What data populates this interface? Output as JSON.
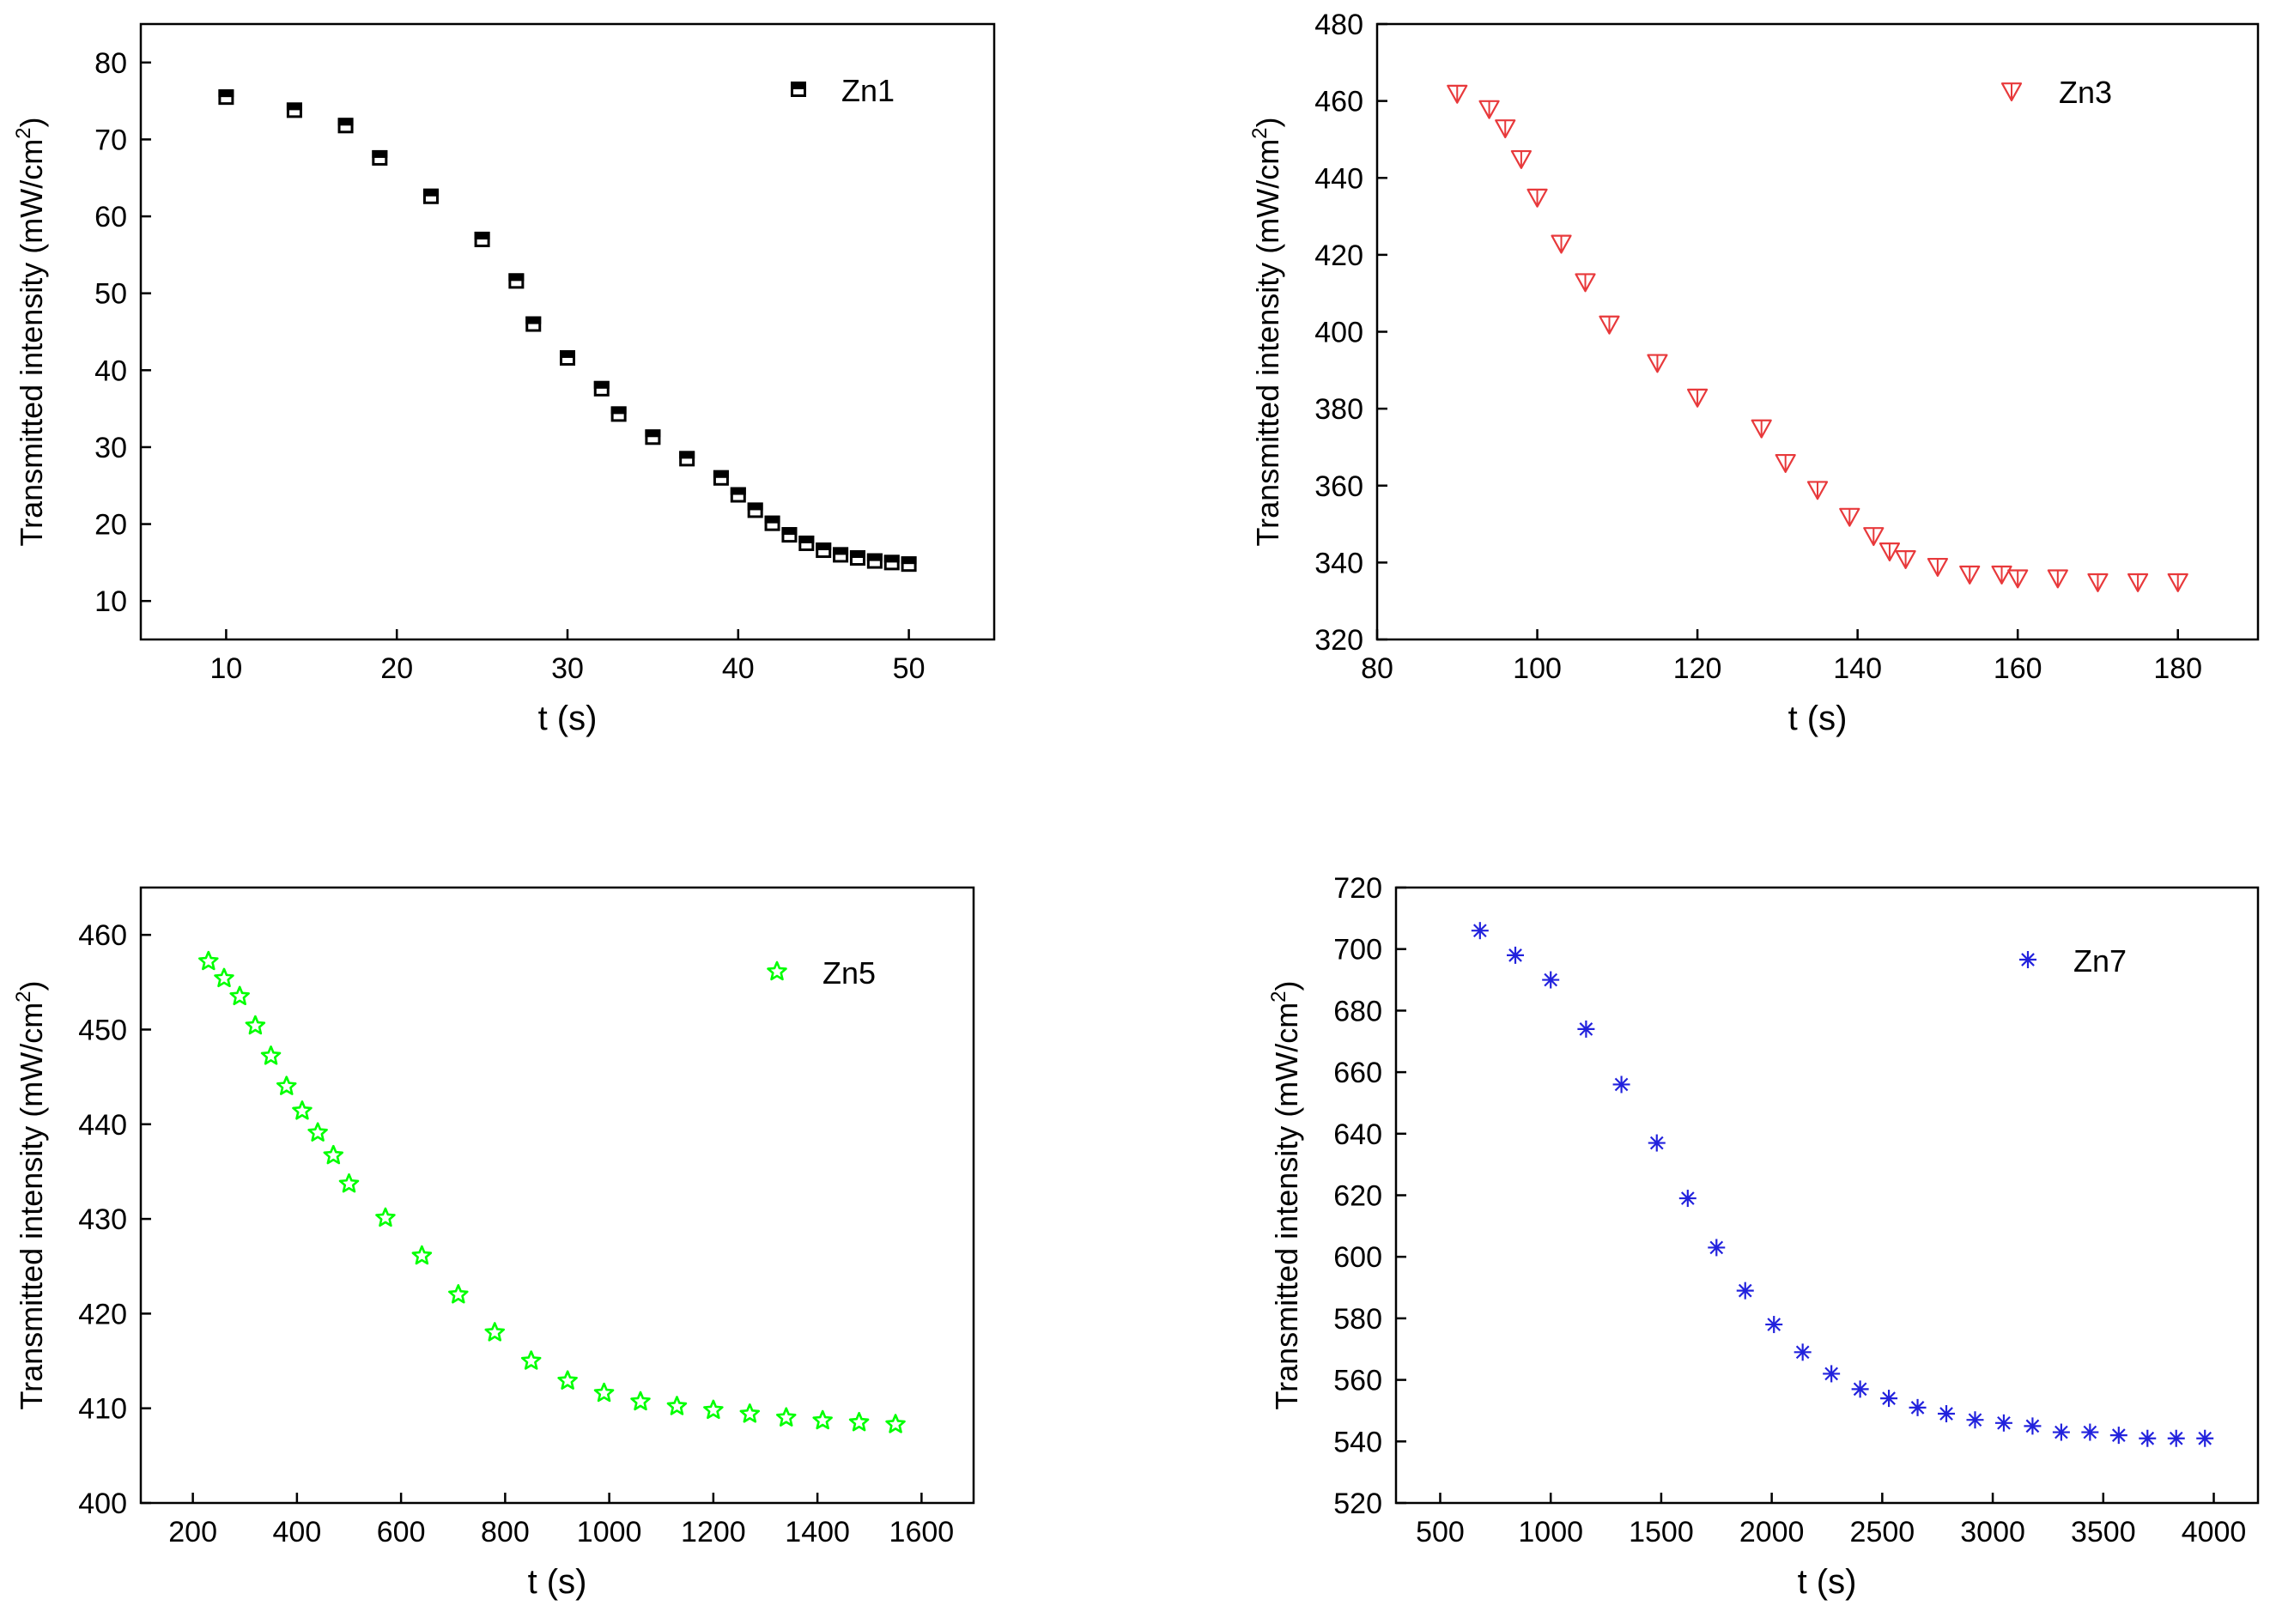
{
  "chart_data": [
    {
      "type": "scatter",
      "title": "",
      "xlabel": "t (s)",
      "ylabel": {
        "main": "Transmitted intensity (mW/cm",
        "sup": "2",
        "close": ")"
      },
      "xlim": [
        5,
        55
      ],
      "ylim": [
        5,
        85
      ],
      "xticks": [
        10,
        20,
        30,
        40,
        50
      ],
      "yticks": [
        10,
        20,
        30,
        40,
        50,
        60,
        70,
        80
      ],
      "legend": {
        "label": "Zn1",
        "position": "top-right"
      },
      "marker": "half-filled-square",
      "color": "#000000",
      "series": [
        {
          "name": "Zn1",
          "x": [
            10,
            14,
            17,
            19,
            22,
            25,
            27,
            28,
            30,
            32,
            33,
            35,
            37,
            39,
            40,
            41,
            42,
            43,
            44,
            45,
            46,
            47,
            48,
            49,
            50
          ],
          "y": [
            75.5,
            73.8,
            71.8,
            67.6,
            62.6,
            57.0,
            51.6,
            46.0,
            41.6,
            37.6,
            34.3,
            31.3,
            28.5,
            26.0,
            23.8,
            21.8,
            20.1,
            18.6,
            17.5,
            16.6,
            16.0,
            15.6,
            15.2,
            15.0,
            14.8
          ]
        }
      ]
    },
    {
      "type": "scatter",
      "title": "",
      "xlabel": "t (s)",
      "ylabel": {
        "main": "Transmitted intensity (mW/cm",
        "sup": "2",
        "close": ")"
      },
      "xlim": [
        80,
        190
      ],
      "ylim": [
        320,
        480
      ],
      "xticks": [
        80,
        100,
        120,
        140,
        160,
        180
      ],
      "yticks": [
        320,
        340,
        360,
        380,
        400,
        420,
        440,
        460,
        480
      ],
      "legend": {
        "label": "Zn3",
        "position": "top-right"
      },
      "marker": "triangle-down",
      "color": "#e8393b",
      "series": [
        {
          "name": "Zn3",
          "x": [
            90,
            94,
            96,
            98,
            100,
            103,
            106,
            109,
            115,
            120,
            128,
            131,
            135,
            139,
            142,
            144,
            146,
            150,
            154,
            158,
            160,
            165,
            170,
            175,
            180
          ],
          "y": [
            462,
            458,
            453,
            445,
            435,
            423,
            413,
            402,
            392,
            383,
            375,
            366,
            359,
            352,
            347,
            343,
            341,
            339,
            337,
            337,
            336,
            336,
            335,
            335,
            335
          ]
        }
      ]
    },
    {
      "type": "scatter",
      "title": "",
      "xlabel": "t (s)",
      "ylabel": {
        "main": "Transmitted intensity (mW/cm",
        "sup": "2",
        "close": ")"
      },
      "xlim": [
        100,
        1700
      ],
      "ylim": [
        400,
        465
      ],
      "xticks": [
        200,
        400,
        600,
        800,
        1000,
        1200,
        1400,
        1600
      ],
      "yticks": [
        400,
        410,
        420,
        430,
        440,
        450,
        460
      ],
      "legend": {
        "label": "Zn5",
        "position": "top-right"
      },
      "marker": "star",
      "color": "#00ff00",
      "series": [
        {
          "name": "Zn5",
          "x": [
            230,
            260,
            290,
            320,
            350,
            380,
            410,
            440,
            470,
            500,
            570,
            640,
            710,
            780,
            850,
            920,
            990,
            1060,
            1130,
            1200,
            1270,
            1340,
            1410,
            1480,
            1550
          ],
          "y": [
            457.2,
            455.4,
            453.5,
            450.4,
            447.2,
            444.0,
            441.4,
            439.1,
            436.7,
            433.7,
            430.1,
            426.1,
            422.0,
            418.0,
            415.0,
            412.9,
            411.6,
            410.7,
            410.2,
            409.8,
            409.4,
            409.0,
            408.7,
            408.5,
            408.3
          ]
        }
      ]
    },
    {
      "type": "scatter",
      "title": "",
      "xlabel": "t (s)",
      "ylabel": {
        "main": "Transmitted intensity (mW/cm",
        "sup": "2",
        "close": ")"
      },
      "xlim": [
        300,
        4200
      ],
      "ylim": [
        520,
        720
      ],
      "xticks": [
        500,
        1000,
        1500,
        2000,
        2500,
        3000,
        3500,
        4000
      ],
      "yticks": [
        520,
        540,
        560,
        580,
        600,
        620,
        640,
        660,
        680,
        700,
        720
      ],
      "legend": {
        "label": "Zn7",
        "position": "top-right"
      },
      "marker": "asterisk",
      "color": "#2222dd",
      "series": [
        {
          "name": "Zn7",
          "x": [
            680,
            840,
            1000,
            1160,
            1320,
            1480,
            1620,
            1750,
            1880,
            2010,
            2140,
            2270,
            2400,
            2530,
            2660,
            2790,
            2920,
            3050,
            3180,
            3310,
            3440,
            3570,
            3700,
            3830,
            3960
          ],
          "y": [
            706,
            698,
            690,
            674,
            656,
            637,
            619,
            603,
            589,
            578,
            569,
            562,
            557,
            554,
            551,
            549,
            547,
            546,
            545,
            543,
            543,
            542,
            541,
            541,
            541
          ]
        }
      ]
    }
  ]
}
